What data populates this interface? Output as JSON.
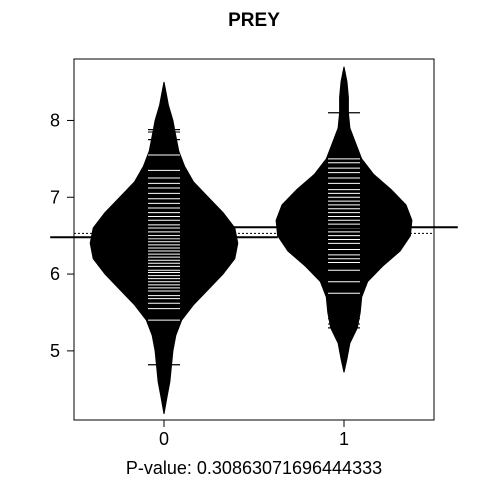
{
  "chart_data": {
    "type": "beanplot",
    "title": "PREY",
    "xlabel": "P-value: 0.30863071696444333",
    "categories": [
      "0",
      "1"
    ],
    "y_ticks": [
      5,
      6,
      7,
      8
    ],
    "ylim": [
      4.1,
      8.8
    ],
    "overall_mean": 6.53,
    "grid": false,
    "colors": {
      "bean": "#000000",
      "lines": "#ffffff",
      "axis": "#000000"
    },
    "series": [
      {
        "category": "0",
        "mean": 6.48,
        "density": [
          [
            4.18,
            0.0
          ],
          [
            4.4,
            0.02
          ],
          [
            4.6,
            0.04
          ],
          [
            4.8,
            0.05
          ],
          [
            5.0,
            0.06
          ],
          [
            5.2,
            0.08
          ],
          [
            5.4,
            0.12
          ],
          [
            5.6,
            0.2
          ],
          [
            5.8,
            0.3
          ],
          [
            6.0,
            0.4
          ],
          [
            6.2,
            0.48
          ],
          [
            6.4,
            0.5
          ],
          [
            6.6,
            0.48
          ],
          [
            6.8,
            0.4
          ],
          [
            7.0,
            0.3
          ],
          [
            7.2,
            0.2
          ],
          [
            7.4,
            0.14
          ],
          [
            7.6,
            0.1
          ],
          [
            7.8,
            0.08
          ],
          [
            8.0,
            0.06
          ],
          [
            8.2,
            0.03
          ],
          [
            8.4,
            0.01
          ],
          [
            8.5,
            0.0
          ]
        ],
        "observations": [
          4.82,
          5.4,
          5.55,
          5.62,
          5.68,
          5.72,
          5.78,
          5.82,
          5.86,
          5.9,
          5.94,
          5.98,
          6.02,
          6.05,
          6.1,
          6.14,
          6.18,
          6.22,
          6.26,
          6.3,
          6.34,
          6.38,
          6.42,
          6.46,
          6.5,
          6.55,
          6.6,
          6.64,
          6.7,
          6.75,
          6.8,
          6.86,
          6.92,
          6.98,
          7.05,
          7.12,
          7.18,
          7.25,
          7.35,
          7.55,
          7.75,
          7.85,
          7.88
        ]
      },
      {
        "category": "1",
        "mean": 6.61,
        "density": [
          [
            4.72,
            0.0
          ],
          [
            4.9,
            0.02
          ],
          [
            5.1,
            0.04
          ],
          [
            5.3,
            0.09
          ],
          [
            5.5,
            0.11
          ],
          [
            5.7,
            0.12
          ],
          [
            5.9,
            0.16
          ],
          [
            6.1,
            0.26
          ],
          [
            6.3,
            0.38
          ],
          [
            6.5,
            0.45
          ],
          [
            6.7,
            0.46
          ],
          [
            6.9,
            0.42
          ],
          [
            7.1,
            0.32
          ],
          [
            7.3,
            0.2
          ],
          [
            7.5,
            0.12
          ],
          [
            7.7,
            0.08
          ],
          [
            7.9,
            0.04
          ],
          [
            8.1,
            0.03
          ],
          [
            8.3,
            0.03
          ],
          [
            8.5,
            0.02
          ],
          [
            8.7,
            0.0
          ]
        ],
        "observations": [
          5.3,
          5.35,
          5.42,
          5.75,
          5.9,
          6.05,
          6.15,
          6.2,
          6.25,
          6.32,
          6.4,
          6.45,
          6.5,
          6.55,
          6.6,
          6.65,
          6.7,
          6.75,
          6.8,
          6.85,
          6.9,
          6.95,
          7.0,
          7.05,
          7.1,
          7.18,
          7.25,
          7.32,
          7.38,
          7.45,
          7.5,
          8.1
        ]
      }
    ]
  }
}
